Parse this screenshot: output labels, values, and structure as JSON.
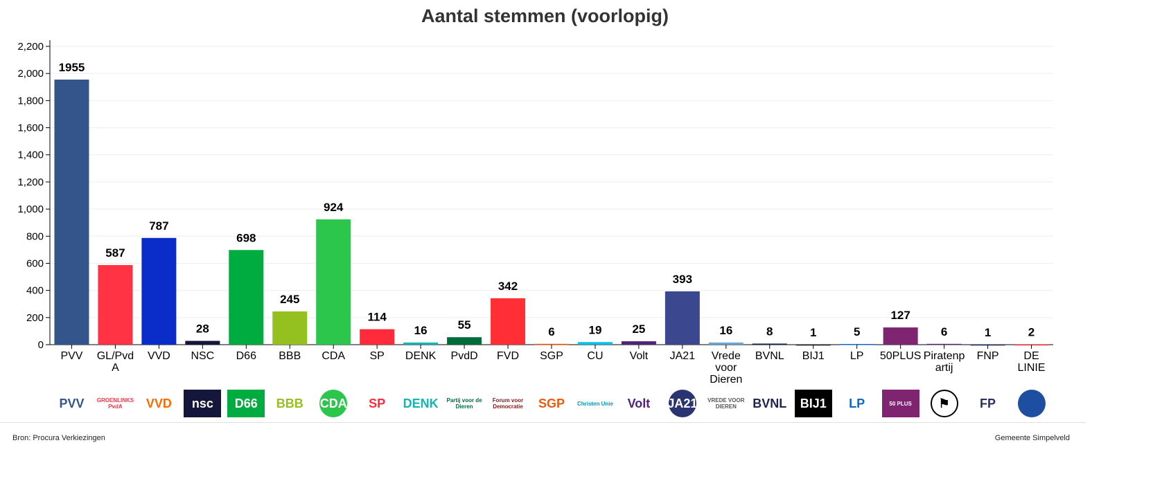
{
  "chart_data": {
    "type": "bar",
    "title": "Aantal stemmen (voorlopig)",
    "xlabel": "",
    "ylabel": "",
    "ylim": [
      0,
      2200
    ],
    "yticks": [
      0,
      200,
      400,
      600,
      800,
      1000,
      1200,
      1400,
      1600,
      1800,
      2000,
      2200
    ],
    "ytick_labels": [
      "0",
      "200",
      "400",
      "600",
      "800",
      "1,000",
      "1,200",
      "1,400",
      "1,600",
      "1,800",
      "2,000",
      "2,200"
    ],
    "grid": true,
    "categories": [
      "PVV",
      "GL/PvdA",
      "VVD",
      "NSC",
      "D66",
      "BBB",
      "CDA",
      "SP",
      "DENK",
      "PvdD",
      "FVD",
      "SGP",
      "CU",
      "Volt",
      "JA21",
      "Vrede voor Dieren",
      "BVNL",
      "BIJ1",
      "LP",
      "50PLUS",
      "Piratenpartij",
      "FNP",
      "DE LINIE"
    ],
    "values": [
      1955,
      587,
      787,
      28,
      698,
      245,
      924,
      114,
      16,
      55,
      342,
      6,
      19,
      25,
      393,
      16,
      8,
      1,
      5,
      127,
      6,
      1,
      2
    ],
    "colors": [
      "#34558b",
      "#ff3344",
      "#0a2dca",
      "#14163b",
      "#00ac40",
      "#94c11f",
      "#2dc64c",
      "#ff2b3b",
      "#12b5b0",
      "#006b3b",
      "#ff2f35",
      "#ea5b0c",
      "#00c0e8",
      "#502379",
      "#3b4890",
      "#6ea4d4",
      "#1e2550",
      "#222222",
      "#0d68c8",
      "#7f2470",
      "#4b2d7c",
      "#29325f",
      "#e03030"
    ],
    "logos": [
      {
        "text": "PVV",
        "color": "#34558b",
        "bg": "#fff"
      },
      {
        "text": "GROENLINKS PvdA",
        "color": "#ff3344",
        "bg": "#fff"
      },
      {
        "text": "VVD",
        "color": "#ff6a00",
        "bg": "#fff"
      },
      {
        "text": "nsc",
        "color": "#fff",
        "bg": "#14163b"
      },
      {
        "text": "D66",
        "color": "#fff",
        "bg": "#00ac40"
      },
      {
        "text": "BBB",
        "color": "#94c11f",
        "bg": "#fff"
      },
      {
        "text": "CDA",
        "color": "#fff",
        "bg": "#2dc64c",
        "round": true
      },
      {
        "text": "SP",
        "color": "#ff2b3b",
        "bg": "#fff"
      },
      {
        "text": "DENK",
        "color": "#12b5b0",
        "bg": "#fff"
      },
      {
        "text": "Partij voor de Dieren",
        "color": "#006b3b",
        "bg": "#fff"
      },
      {
        "text": "Forum voor Democratie",
        "color": "#8b1a1a",
        "bg": "#fff"
      },
      {
        "text": "SGP",
        "color": "#ea5b0c",
        "bg": "#fff"
      },
      {
        "text": "Christen Unie",
        "color": "#0096c8",
        "bg": "#fff"
      },
      {
        "text": "Volt",
        "color": "#502379",
        "bg": "#fff"
      },
      {
        "text": "JA21",
        "color": "#fff",
        "bg": "#2a3470",
        "round": true
      },
      {
        "text": "VREDE VOOR DIEREN",
        "color": "#555",
        "bg": "#fff"
      },
      {
        "text": "BVNL",
        "color": "#1e2550",
        "bg": "#fff"
      },
      {
        "text": "BIJ1",
        "color": "#fff",
        "bg": "#000"
      },
      {
        "text": "LP",
        "color": "#0d68c8",
        "bg": "#fff"
      },
      {
        "text": "50 PLUS",
        "color": "#fff",
        "bg": "#7f2470"
      },
      {
        "text": "⚑",
        "color": "#000",
        "bg": "#fff",
        "round": true
      },
      {
        "text": "FP",
        "color": "#29325f",
        "bg": "#fff"
      },
      {
        "text": "",
        "color": "#e03030",
        "bg": "#1e4ea0",
        "round": true
      }
    ]
  },
  "footer": {
    "source": "Bron: Procura Verkiezingen",
    "municipality": "Gemeente Simpelveld"
  }
}
